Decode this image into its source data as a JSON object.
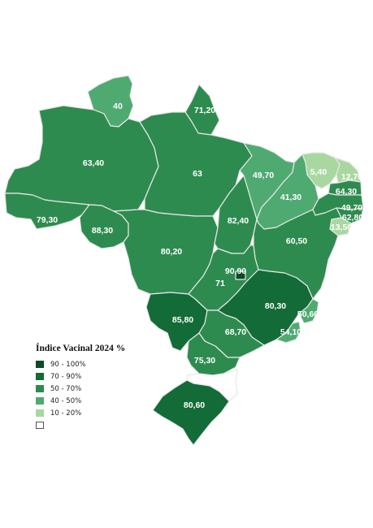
{
  "legend": {
    "title": "Índice Vacinal 2024 %",
    "classes": [
      {
        "label": "90 - 100%",
        "color": "#0e4a26"
      },
      {
        "label": "70 - 90%",
        "color": "#136b37"
      },
      {
        "label": "50 - 70%",
        "color": "#2e8b4f"
      },
      {
        "label": "40 - 50%",
        "color": "#4faa72"
      },
      {
        "label": "10 - 20%",
        "color": "#a8d8a0"
      },
      {
        "label": "",
        "color": "#ffffff"
      }
    ]
  },
  "states": [
    {
      "code": "RR",
      "value": "40"
    },
    {
      "code": "AP",
      "value": "71,20"
    },
    {
      "code": "AM",
      "value": "63,40"
    },
    {
      "code": "PA",
      "value": "63"
    },
    {
      "code": "AC",
      "value": "79,30"
    },
    {
      "code": "RO",
      "value": "88,30"
    },
    {
      "code": "MT",
      "value": "80,20"
    },
    {
      "code": "TO",
      "value": "82,40"
    },
    {
      "code": "MA",
      "value": "49,70"
    },
    {
      "code": "PI",
      "value": "41,30"
    },
    {
      "code": "CE",
      "value": "5,40"
    },
    {
      "code": "RN",
      "value": "12,70"
    },
    {
      "code": "PB",
      "value": "64,30"
    },
    {
      "code": "PE",
      "value": "49,70"
    },
    {
      "code": "AL",
      "value": "62,80"
    },
    {
      "code": "SE",
      "value": "13,50"
    },
    {
      "code": "BA",
      "value": "60,50"
    },
    {
      "code": "GO",
      "value": "71"
    },
    {
      "code": "DF",
      "value": "90,90"
    },
    {
      "code": "MG",
      "value": "80,30"
    },
    {
      "code": "ES",
      "value": "50,60"
    },
    {
      "code": "RJ",
      "value": "54,10"
    },
    {
      "code": "MS",
      "value": "85,80"
    },
    {
      "code": "SP",
      "value": "68,70"
    },
    {
      "code": "PR",
      "value": "75,30"
    },
    {
      "code": "SC",
      "value": ""
    },
    {
      "code": "RS",
      "value": "80,60"
    }
  ]
}
